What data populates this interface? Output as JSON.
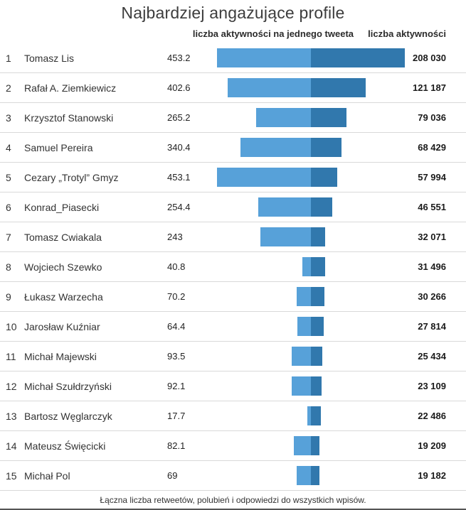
{
  "title": "Najbardziej angażujące profile",
  "column_headers": {
    "per_tweet": "liczba aktywności na jednego tweeta",
    "total": "liczba aktywności"
  },
  "footer": "Łączna liczba retweetów, polubień i odpowiedzi do wszystkich wpisów.",
  "colors": {
    "per_tweet_bar": "#57a1d9",
    "total_bar": "#3178ad",
    "separator": "#d9d9d9"
  },
  "rows": [
    {
      "rank": "1",
      "name": "Tomasz Lis",
      "per_tweet": "453.2",
      "total": "208 030"
    },
    {
      "rank": "2",
      "name": "Rafał A. Ziemkiewicz",
      "per_tweet": "402.6",
      "total": "121 187"
    },
    {
      "rank": "3",
      "name": "Krzysztof Stanowski",
      "per_tweet": "265.2",
      "total": "79 036"
    },
    {
      "rank": "4",
      "name": "Samuel Pereira",
      "per_tweet": "340.4",
      "total": "68 429"
    },
    {
      "rank": "5",
      "name": "Cezary „Trotyl” Gmyz",
      "per_tweet": "453.1",
      "total": "57 994"
    },
    {
      "rank": "6",
      "name": "Konrad_Piasecki",
      "per_tweet": "254.4",
      "total": "46 551"
    },
    {
      "rank": "7",
      "name": "Tomasz Cwiakala",
      "per_tweet": "243",
      "total": "32 071"
    },
    {
      "rank": "8",
      "name": "Wojciech Szewko",
      "per_tweet": "40.8",
      "total": "31 496"
    },
    {
      "rank": "9",
      "name": "Łukasz Warzecha",
      "per_tweet": "70.2",
      "total": "30 266"
    },
    {
      "rank": "10",
      "name": "Jarosław Kuźniar",
      "per_tweet": "64.4",
      "total": "27 814"
    },
    {
      "rank": "11",
      "name": "Michał Majewski",
      "per_tweet": "93.5",
      "total": "25 434"
    },
    {
      "rank": "12",
      "name": "Michał Szułdrzyński",
      "per_tweet": "92.1",
      "total": "23 109"
    },
    {
      "rank": "13",
      "name": "Bartosz Węglarczyk",
      "per_tweet": "17.7",
      "total": "22 486"
    },
    {
      "rank": "14",
      "name": "Mateusz Święcicki",
      "per_tweet": "82.1",
      "total": "19 209"
    },
    {
      "rank": "15",
      "name": "Michał Pol",
      "per_tweet": "69",
      "total": "19 182"
    }
  ],
  "chart_data": {
    "type": "bar",
    "orientation": "horizontal-diverging",
    "title": "Najbardziej angażujące profile",
    "note": "Łączna liczba retweetów, polubień i odpowiedzi do wszystkich wpisów.",
    "categories": [
      "Tomasz Lis",
      "Rafał A. Ziemkiewicz",
      "Krzysztof Stanowski",
      "Samuel Pereira",
      "Cezary „Trotyl” Gmyz",
      "Konrad_Piasecki",
      "Tomasz Cwiakala",
      "Wojciech Szewko",
      "Łukasz Warzecha",
      "Jarosław Kuźniar",
      "Michał Majewski",
      "Michał Szułdrzyński",
      "Bartosz Węglarczyk",
      "Mateusz Święcicki",
      "Michał Pol"
    ],
    "series": [
      {
        "name": "liczba aktywności na jednego tweeta",
        "side": "left",
        "color": "#57a1d9",
        "axis_max": 453.2,
        "values": [
          453.2,
          402.6,
          265.2,
          340.4,
          453.1,
          254.4,
          243,
          40.8,
          70.2,
          64.4,
          93.5,
          92.1,
          17.7,
          82.1,
          69
        ]
      },
      {
        "name": "liczba aktywności",
        "side": "right",
        "color": "#3178ad",
        "axis_max": 208030,
        "values": [
          208030,
          121187,
          79036,
          68429,
          57994,
          46551,
          32071,
          31496,
          30266,
          27814,
          25434,
          23109,
          22486,
          19209,
          19182
        ]
      }
    ],
    "grid": false,
    "legend_position": "top"
  }
}
